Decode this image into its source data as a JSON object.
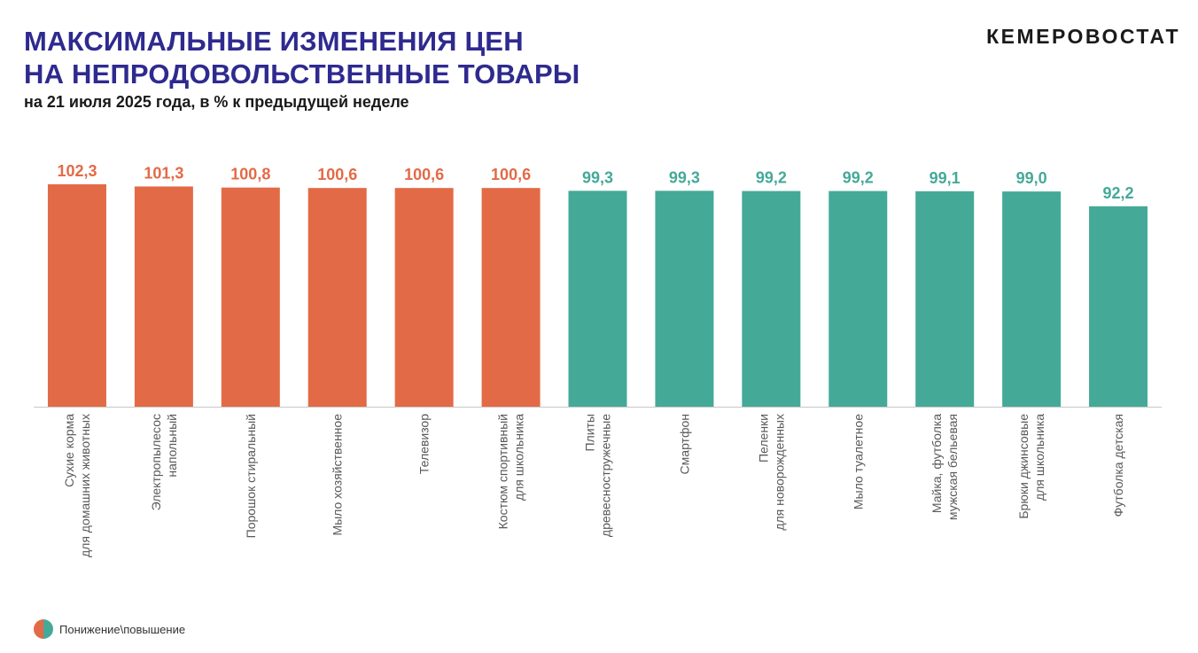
{
  "header": {
    "title_line1": "МАКСИМАЛЬНЫЕ ИЗМЕНЕНИЯ ЦЕН",
    "title_line2": "НА НЕПРОДОВОЛЬСТВЕННЫЕ ТОВАРЫ",
    "subtitle": "на 21 июля 2025 года, в % к предыдущей неделе",
    "brand": "КЕМЕРОВОСТАТ"
  },
  "legend": {
    "label": "Понижение\\повышение",
    "icon": "half-pie-icon"
  },
  "colors": {
    "increase": "#e36a46",
    "decrease": "#45a998",
    "title": "#2f2a8f"
  },
  "chart_data": {
    "type": "bar",
    "title": "МАКСИМАЛЬНЫЕ ИЗМЕНЕНИЯ ЦЕН НА НЕПРОДОВОЛЬСТВЕННЫЕ ТОВАРЫ",
    "xlabel": "",
    "ylabel": "",
    "ylim": [
      0,
      102.3
    ],
    "grid": false,
    "categories": [
      [
        "Сухие корма",
        "для домашних животных"
      ],
      [
        "Электропылесос",
        "напольный"
      ],
      [
        "Порошок стиральный"
      ],
      [
        "Мыло хозяйственное"
      ],
      [
        "Телевизор"
      ],
      [
        "Костюм спортивный",
        "для школьника"
      ],
      [
        "Плиты",
        "древесностружечные"
      ],
      [
        "Смартфон"
      ],
      [
        "Пеленки",
        "для новорожденных"
      ],
      [
        "Мыло туалетное"
      ],
      [
        "Майка, футболка",
        "мужская бельевая"
      ],
      [
        "Брюки джинсовые",
        "для школьника"
      ],
      [
        "Футболка детская"
      ]
    ],
    "values": [
      102.3,
      101.3,
      100.8,
      100.6,
      100.6,
      100.6,
      99.3,
      99.3,
      99.2,
      99.2,
      99.1,
      99.0,
      92.2
    ],
    "value_labels": [
      "102,3",
      "101,3",
      "100,8",
      "100,6",
      "100,6",
      "100,6",
      "99,3",
      "99,3",
      "99,2",
      "99,2",
      "99,1",
      "99,0",
      "92,2"
    ],
    "direction": [
      "increase",
      "increase",
      "increase",
      "increase",
      "increase",
      "increase",
      "decrease",
      "decrease",
      "decrease",
      "decrease",
      "decrease",
      "decrease",
      "decrease"
    ]
  }
}
